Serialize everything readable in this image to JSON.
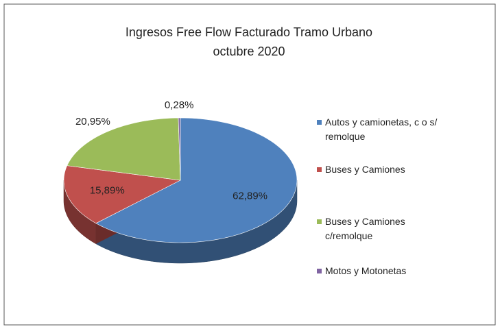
{
  "chart_data": {
    "type": "pie",
    "title": "Ingresos Free Flow Facturado Tramo Urbano",
    "subtitle": "octubre 2020",
    "categories": [
      "Autos y camionetas, c o s/ remolque",
      "Buses y Camiones",
      "Buses y Camiones c/remolque",
      "Motos y Motonetas"
    ],
    "values": [
      62.89,
      15.89,
      20.95,
      0.28
    ],
    "value_labels": [
      "62,89%",
      "15,89%",
      "20,95%",
      "0,28%"
    ],
    "colors": [
      "#4f81bd",
      "#c0504d",
      "#9bbb59",
      "#8064a2"
    ],
    "legend": "right",
    "3d": true
  }
}
